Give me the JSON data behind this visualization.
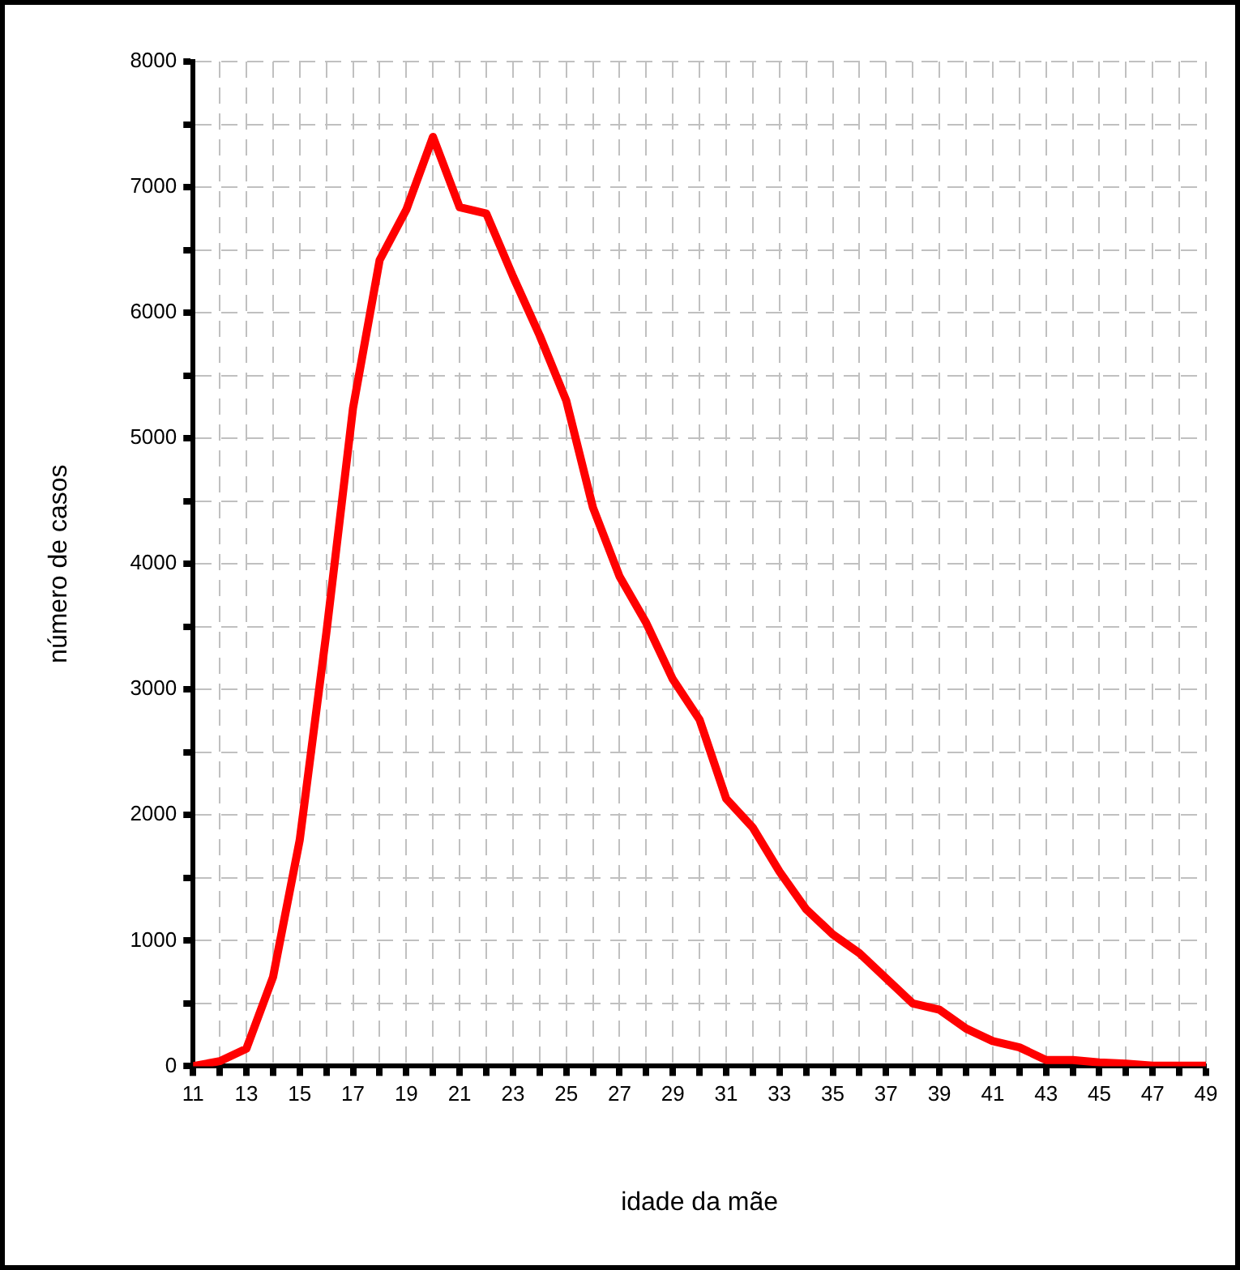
{
  "chart_data": {
    "type": "line",
    "xlabel": "idade da mãe",
    "ylabel": "número de casos",
    "x": [
      11,
      12,
      13,
      14,
      15,
      16,
      17,
      18,
      19,
      20,
      21,
      22,
      23,
      24,
      25,
      26,
      27,
      28,
      29,
      30,
      31,
      32,
      33,
      34,
      35,
      36,
      37,
      38,
      39,
      40,
      41,
      42,
      43,
      44,
      45,
      46,
      47,
      48,
      49
    ],
    "series": [
      {
        "color": "#ff0000",
        "values": [
          0,
          40,
          140,
          710,
          1800,
          3450,
          5240,
          6420,
          6820,
          7400,
          6840,
          6790,
          6290,
          5820,
          5300,
          4450,
          3900,
          3530,
          3080,
          2760,
          2130,
          1900,
          1550,
          1250,
          1050,
          900,
          700,
          500,
          450,
          300,
          200,
          150,
          50,
          50,
          30,
          20,
          5,
          5,
          5
        ]
      }
    ],
    "xlim": [
      11,
      49
    ],
    "xticks": [
      11,
      {
        "value": 12,
        "label": null
      },
      13,
      {
        "value": 14,
        "label": null
      },
      15,
      {
        "value": 16,
        "label": null
      },
      17,
      {
        "value": 18,
        "label": null
      },
      19,
      {
        "value": 20,
        "label": null
      },
      21,
      {
        "value": 22,
        "label": null
      },
      23,
      {
        "value": 24,
        "label": null
      },
      25,
      {
        "value": 26,
        "label": null
      },
      27,
      {
        "value": 28,
        "label": null
      },
      29,
      {
        "value": 30,
        "label": null
      },
      31,
      {
        "value": 32,
        "label": null
      },
      33,
      {
        "value": 34,
        "label": null
      },
      35,
      {
        "value": 36,
        "label": null
      },
      37,
      {
        "value": 38,
        "label": null
      },
      39,
      {
        "value": 40,
        "label": null
      },
      41,
      {
        "value": 42,
        "label": null
      },
      43,
      {
        "value": 44,
        "label": null
      },
      45,
      {
        "value": 46,
        "label": null
      },
      47,
      {
        "value": 48,
        "label": null
      },
      49
    ],
    "ylim": [
      0,
      8000
    ],
    "yticks": [
      0,
      {
        "value": 500,
        "label": null
      },
      1000,
      {
        "value": 1500,
        "label": null
      },
      2000,
      {
        "value": 2500,
        "label": null
      },
      3000,
      {
        "value": 3500,
        "label": null
      },
      4000,
      {
        "value": 4500,
        "label": null
      },
      5000,
      {
        "value": 5500,
        "label": null
      },
      6000,
      {
        "value": 6500,
        "label": null
      },
      7000,
      {
        "value": 7500,
        "label": null
      },
      8000
    ],
    "grid": true,
    "legend": false,
    "marker": "none",
    "line_style": "solid"
  }
}
